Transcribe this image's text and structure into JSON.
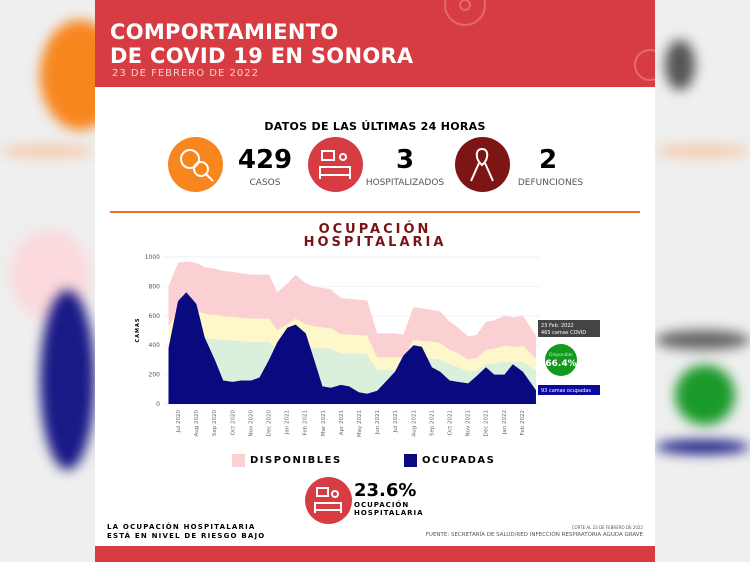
{
  "header": {
    "title_line1": "COMPORTAMIENTO",
    "title_line2": "DE COVID 19 EN SONORA",
    "date": "23 DE FEBRERO DE 2022"
  },
  "summary": {
    "heading": "DATOS DE LAS ÚLTIMAS 24 HORAS",
    "stats": [
      {
        "value": "429",
        "label": "CASOS",
        "icon": "virus-search-icon",
        "color": "#f7861f"
      },
      {
        "value": "3",
        "label": "HOSPITALIZADOS",
        "icon": "hospital-bed-icon",
        "color": "#d63c42"
      },
      {
        "value": "2",
        "label": "DEFUNCIONES",
        "icon": "ribbon-icon",
        "color": "#7d1515"
      }
    ]
  },
  "chart_title_line1": "OCUPACIÓN",
  "chart_title_line2": "HOSPITALARIA",
  "chart_data": {
    "type": "area",
    "ylabel": "CAMAS",
    "ylim": [
      0,
      1000
    ],
    "yticks": [
      "0",
      "200",
      "400",
      "600",
      "800",
      "1000"
    ],
    "xticks": [
      "Jul 2020",
      "Aug 2020",
      "Sep 2020",
      "Oct 2020",
      "Nov 2020",
      "Dec 2020",
      "Jan 2021",
      "Feb 2021",
      "Mar 2021",
      "Apr 2021",
      "May 2021",
      "Jun 2021",
      "Jul 2021",
      "Aug 2021",
      "Sep 2021",
      "Oct 2021",
      "Nov 2021",
      "Dec 2021",
      "Jan 2022",
      "Feb 2022"
    ],
    "x": [
      "2020-06-15",
      "2020-07-01",
      "2020-07-15",
      "2020-08-01",
      "2020-08-15",
      "2020-09-01",
      "2020-09-15",
      "2020-10-01",
      "2020-10-15",
      "2020-11-01",
      "2020-11-15",
      "2020-12-01",
      "2020-12-15",
      "2021-01-01",
      "2021-01-15",
      "2021-02-01",
      "2021-02-15",
      "2021-03-01",
      "2021-03-15",
      "2021-04-01",
      "2021-04-15",
      "2021-05-01",
      "2021-05-15",
      "2021-06-01",
      "2021-06-15",
      "2021-07-01",
      "2021-07-15",
      "2021-08-01",
      "2021-08-15",
      "2021-09-01",
      "2021-09-15",
      "2021-10-01",
      "2021-10-15",
      "2021-11-01",
      "2021-11-15",
      "2021-12-01",
      "2021-12-15",
      "2022-01-01",
      "2022-01-15",
      "2022-02-01",
      "2022-02-23"
    ],
    "series": [
      {
        "name": "DISPONIBLES",
        "color": "#fbd0d3",
        "values": [
          800,
          960,
          970,
          960,
          930,
          920,
          905,
          900,
          890,
          880,
          880,
          880,
          760,
          820,
          880,
          820,
          800,
          790,
          780,
          720,
          715,
          710,
          705,
          480,
          480,
          480,
          470,
          660,
          650,
          640,
          630,
          560,
          520,
          460,
          470,
          560,
          570,
          600,
          590,
          600,
          465
        ]
      },
      {
        "name": "OCUPADAS",
        "color": "#0a0a80",
        "values": [
          380,
          700,
          760,
          680,
          450,
          300,
          160,
          150,
          160,
          160,
          180,
          300,
          420,
          520,
          540,
          480,
          300,
          120,
          110,
          130,
          120,
          80,
          70,
          90,
          150,
          220,
          330,
          400,
          390,
          250,
          220,
          160,
          150,
          140,
          190,
          250,
          200,
          200,
          270,
          220,
          93
        ]
      }
    ],
    "risk_bands": [
      {
        "color": "#fdf7c9"
      },
      {
        "color": "#dbf0dc"
      }
    ],
    "annotations": {
      "date": "23 Feb. 2022",
      "capacity": "465 camas COVID",
      "available_label": "Disponible",
      "available_pct": "66.4%",
      "occupied": "93 camas ocupadas"
    },
    "legend": "bottom"
  },
  "occupancy": {
    "value": "23.6%",
    "label_line1": "OCUPACIÓN",
    "label_line2": "HOSPITALARIA"
  },
  "risk": {
    "line1": "LA OCUPACIÓN HOSPITALARIA",
    "line2": "ESTÁ EN NIVEL DE RIESGO BAJO"
  },
  "source": {
    "cut": "CORTE AL 23 DE FEBRERO DE 2022",
    "text": "FUENTE: SECRETARÍA DE SALUD/RED INFECCIÓN RESPIRATORIA AGUDA GRAVE"
  }
}
